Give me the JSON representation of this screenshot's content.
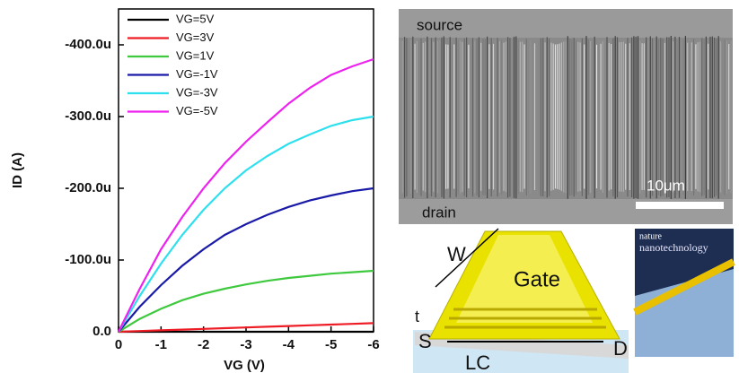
{
  "chart_data": {
    "type": "line",
    "x_label": "VG (V)",
    "y_label": "ID (A)",
    "x": [
      0,
      -0.5,
      -1,
      -1.5,
      -2,
      -2.5,
      -3,
      -3.5,
      -4,
      -4.5,
      -5,
      -5.5,
      -6
    ],
    "xlim": [
      0,
      -6
    ],
    "xticks": [
      0,
      -1,
      -2,
      -3,
      -4,
      -5,
      -6
    ],
    "ylim": [
      0,
      -0.00045
    ],
    "yticks": [
      {
        "value": 0,
        "label": "0.0"
      },
      {
        "value": -0.0001,
        "label": "-100.0u"
      },
      {
        "value": -0.0002,
        "label": "-200.0u"
      },
      {
        "value": -0.0003,
        "label": "-300.0u"
      },
      {
        "value": -0.0004,
        "label": "-400.0u"
      }
    ],
    "legend": "top-left",
    "series": [
      {
        "name": "VG=5V",
        "color": "#000000",
        "values": [
          0,
          0,
          0,
          0,
          0,
          0,
          0,
          0,
          0,
          0,
          0,
          0,
          0
        ]
      },
      {
        "name": "VG=3V",
        "color": "#ee1c24",
        "values": [
          0,
          -1e-06,
          -2e-06,
          -3e-06,
          -4e-06,
          -5e-06,
          -6e-06,
          -7e-06,
          -8e-06,
          -9e-06,
          -1e-05,
          -1.1e-05,
          -1.2e-05
        ]
      },
      {
        "name": "VG=1V",
        "color": "#3ec93e",
        "values": [
          0,
          -1.8e-05,
          -3.2e-05,
          -4.4e-05,
          -5.3e-05,
          -6e-05,
          -6.6e-05,
          -7.1e-05,
          -7.5e-05,
          -7.8e-05,
          -8.1e-05,
          -8.3e-05,
          -8.5e-05
        ]
      },
      {
        "name": "VG=-1V",
        "color": "#1a1aa8",
        "values": [
          0,
          -3.5e-05,
          -6.5e-05,
          -9.2e-05,
          -0.000115,
          -0.000135,
          -0.00015,
          -0.000163,
          -0.000174,
          -0.000183,
          -0.00019,
          -0.000196,
          -0.0002
        ]
      },
      {
        "name": "VG=-3V",
        "color": "#2ee0ee",
        "values": [
          0,
          -5e-05,
          -9.5e-05,
          -0.000135,
          -0.00017,
          -0.0002,
          -0.000225,
          -0.000245,
          -0.000262,
          -0.000275,
          -0.000287,
          -0.000295,
          -0.0003
        ]
      },
      {
        "name": "VG=-5V",
        "color": "#ee22ee",
        "values": [
          0,
          -6e-05,
          -0.000115,
          -0.00016,
          -0.0002,
          -0.000235,
          -0.000265,
          -0.000292,
          -0.000318,
          -0.00034,
          -0.000358,
          -0.00037,
          -0.00038
        ]
      }
    ]
  },
  "sem_image": {
    "top_label": "source",
    "bottom_label": "drain",
    "scale_label": "10μm"
  },
  "device_diagram": {
    "width_label": "W",
    "gate_label": "Gate",
    "thickness_label": "t",
    "source_label": "S",
    "drain_label": "D",
    "length_label": "LC"
  },
  "cover": {
    "journal": "nature",
    "subtitle": "nanotechnology"
  }
}
